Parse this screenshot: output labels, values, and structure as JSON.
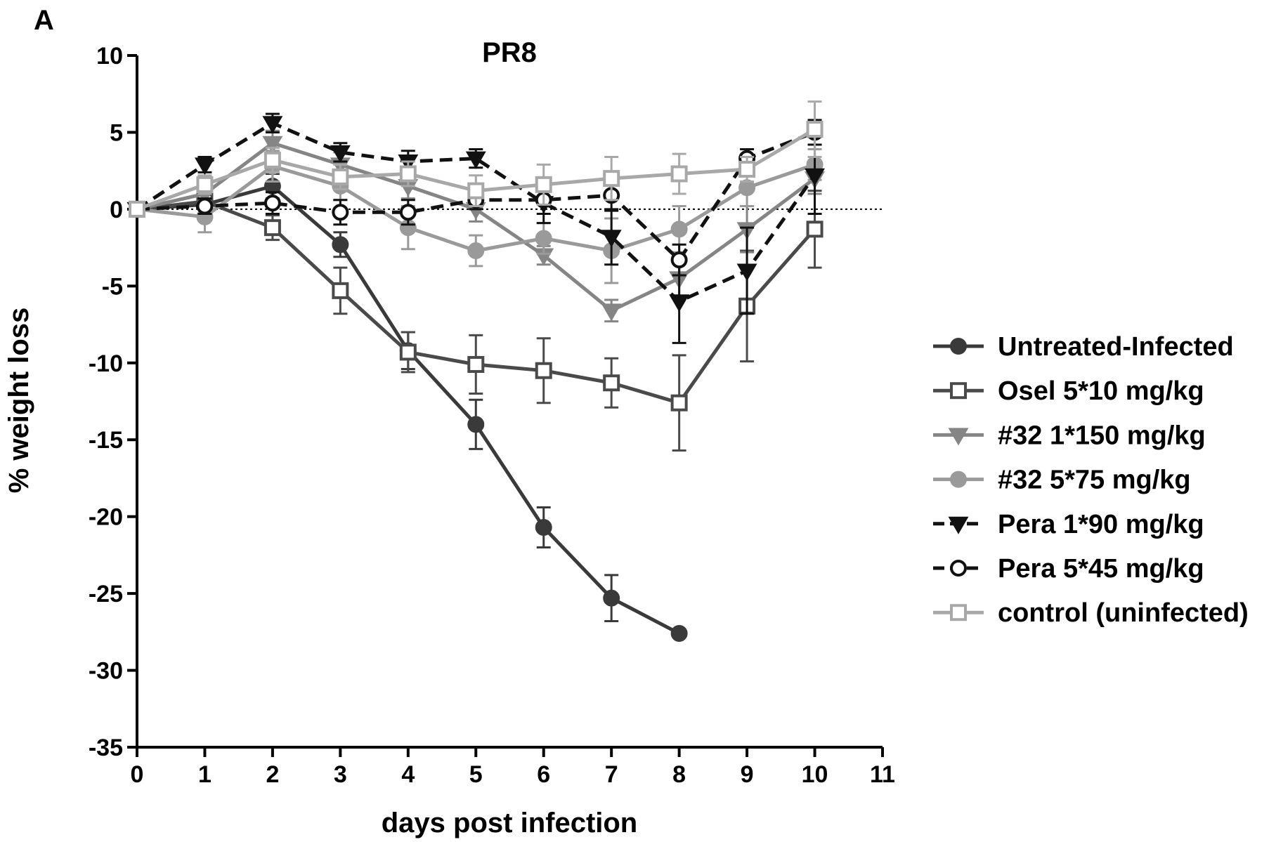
{
  "panel_label": "A",
  "chart_data": {
    "type": "line",
    "title": "PR8",
    "xlabel": "days post infection",
    "ylabel": "% weight loss",
    "xlim": [
      0,
      11
    ],
    "ylim": [
      -35,
      10
    ],
    "xticks": [
      0,
      1,
      2,
      3,
      4,
      5,
      6,
      7,
      8,
      9,
      10,
      11
    ],
    "yticks": [
      10,
      5,
      0,
      -5,
      -10,
      -15,
      -20,
      -25,
      -30,
      -35
    ],
    "reference_line": {
      "y": 0,
      "style": "dotted"
    },
    "grid": false,
    "legend_placement": "right",
    "series": [
      {
        "name": "Untreated-Infected",
        "color": "#3a3a3a",
        "marker": "circle",
        "fill": true,
        "dash": false,
        "x": [
          0,
          1,
          2,
          3,
          4,
          5,
          6,
          7,
          8
        ],
        "y": [
          0,
          0.3,
          1.5,
          -2.3,
          -9.2,
          -14.0,
          -20.7,
          -25.3,
          -27.6
        ],
        "err": [
          0,
          1.0,
          0.8,
          0.8,
          1.2,
          1.6,
          1.3,
          1.5,
          0
        ]
      },
      {
        "name": "Osel 5*10 mg/kg",
        "color": "#4a4a4a",
        "marker": "square",
        "fill": false,
        "dash": false,
        "x": [
          0,
          1,
          2,
          3,
          4,
          5,
          6,
          7,
          8,
          9,
          10
        ],
        "y": [
          0,
          0.5,
          -1.2,
          -5.3,
          -9.3,
          -10.1,
          -10.5,
          -11.3,
          -12.6,
          -6.3,
          -1.3
        ],
        "err": [
          0,
          0.8,
          0.8,
          1.5,
          1.3,
          1.9,
          2.1,
          1.6,
          3.1,
          3.6,
          2.5
        ]
      },
      {
        "name": "#32 1*150 mg/kg",
        "color": "#858585",
        "marker": "triangle-down",
        "fill": true,
        "dash": false,
        "x": [
          0,
          1,
          2,
          3,
          4,
          5,
          6,
          7,
          8,
          9,
          10
        ],
        "y": [
          0,
          1.0,
          4.3,
          2.9,
          1.5,
          0.0,
          -3.0,
          -6.6,
          -4.5,
          -1.3,
          2.0
        ],
        "err": [
          0,
          0.8,
          0.8,
          0.8,
          0.8,
          0.8,
          0.6,
          0.7,
          1.2,
          1.5,
          1.0
        ]
      },
      {
        "name": "#32 5*75 mg/kg",
        "color": "#9a9a9a",
        "marker": "circle",
        "fill": true,
        "dash": false,
        "x": [
          0,
          1,
          2,
          3,
          4,
          5,
          6,
          7,
          8,
          9,
          10
        ],
        "y": [
          0,
          -0.5,
          2.8,
          1.5,
          -1.2,
          -2.7,
          -1.9,
          -2.7,
          -1.3,
          1.4,
          2.9
        ],
        "err": [
          0,
          1.0,
          1.0,
          0.9,
          1.4,
          1.0,
          1.0,
          2.1,
          1.5,
          1.2,
          1.0
        ]
      },
      {
        "name": "Pera 1*90 mg/kg",
        "color": "#111111",
        "marker": "triangle-down",
        "fill": true,
        "dash": true,
        "x": [
          0,
          1,
          2,
          3,
          4,
          5,
          6,
          7,
          8,
          9,
          10
        ],
        "y": [
          0,
          2.9,
          5.6,
          3.7,
          3.1,
          3.3,
          0.4,
          -1.8,
          -6.0,
          -4.0,
          2.2
        ],
        "err": [
          0,
          0.5,
          0.6,
          0.6,
          0.7,
          0.6,
          1.3,
          1.8,
          2.7,
          2.8,
          2.5
        ]
      },
      {
        "name": "Pera 5*45 mg/kg",
        "color": "#111111",
        "marker": "circle",
        "fill": false,
        "dash": true,
        "x": [
          0,
          1,
          2,
          3,
          4,
          5,
          6,
          7,
          8,
          9,
          10
        ],
        "y": [
          0,
          0.2,
          0.4,
          -0.2,
          -0.2,
          0.6,
          0.6,
          0.9,
          -3.3,
          3.3,
          5.0
        ],
        "err": [
          0,
          0.5,
          0.7,
          0.8,
          0.8,
          0.6,
          0.9,
          1.0,
          1.0,
          0.6,
          0.8
        ]
      },
      {
        "name": "control (uninfected)",
        "color": "#a8a8a8",
        "marker": "square",
        "fill": false,
        "dash": false,
        "x": [
          0,
          1,
          2,
          3,
          4,
          5,
          6,
          7,
          8,
          9,
          10
        ],
        "y": [
          0,
          1.6,
          3.2,
          2.1,
          2.3,
          1.2,
          1.6,
          2.0,
          2.3,
          2.6,
          5.2
        ],
        "err": [
          0,
          0.6,
          0.8,
          0.8,
          0.8,
          1.0,
          1.3,
          1.4,
          1.3,
          0.8,
          1.8
        ]
      }
    ]
  }
}
